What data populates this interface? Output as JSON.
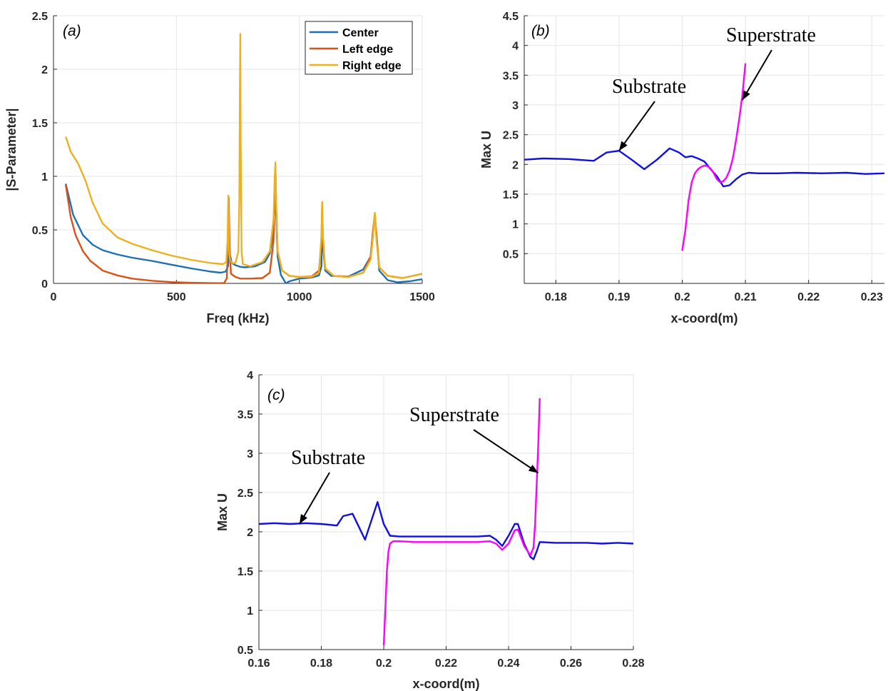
{
  "chart_data": [
    {
      "panel": "(a)",
      "type": "line",
      "xlabel": "Freq (kHz)",
      "ylabel": "|S-Parameter|",
      "xlim": [
        0,
        1500
      ],
      "ylim": [
        0,
        2.5
      ],
      "xticks": [
        0,
        500,
        1000,
        1500
      ],
      "yticks": [
        0,
        0.5,
        1,
        1.5,
        2,
        2.5
      ],
      "grid": true,
      "legend_position": "top-right",
      "series": [
        {
          "name": "Center",
          "color": "#1f6fb4",
          "x": [
            50,
            80,
            120,
            160,
            200,
            260,
            320,
            400,
            480,
            560,
            640,
            680,
            700,
            710,
            715,
            725,
            740,
            760,
            780,
            820,
            860,
            880,
            895,
            900,
            903,
            906,
            912,
            925,
            945,
            960,
            1000,
            1050,
            1080,
            1090,
            1093,
            1096,
            1105,
            1130,
            1200,
            1260,
            1290,
            1300,
            1307,
            1314,
            1325,
            1360,
            1400,
            1450,
            1500
          ],
          "y": [
            0.93,
            0.64,
            0.45,
            0.36,
            0.31,
            0.27,
            0.24,
            0.21,
            0.175,
            0.14,
            0.11,
            0.1,
            0.11,
            0.16,
            0.3,
            0.19,
            0.17,
            0.155,
            0.15,
            0.16,
            0.2,
            0.28,
            0.5,
            0.75,
            0.8,
            0.6,
            0.25,
            0.08,
            0.0,
            0.02,
            0.045,
            0.055,
            0.075,
            0.16,
            0.67,
            0.35,
            0.12,
            0.07,
            0.065,
            0.13,
            0.25,
            0.5,
            0.63,
            0.45,
            0.12,
            0.03,
            0.01,
            0.02,
            0.04
          ]
        },
        {
          "name": "Left edge",
          "color": "#d95319",
          "x": [
            50,
            70,
            90,
            120,
            150,
            200,
            260,
            320,
            400,
            480,
            560,
            640,
            680,
            695,
            705,
            710,
            713,
            716,
            722,
            740,
            760,
            800,
            850,
            880,
            895,
            900,
            903,
            906,
            912,
            930,
            960,
            1000,
            1050,
            1080,
            1090,
            1093,
            1096,
            1105,
            1140,
            1200,
            1260,
            1290,
            1300,
            1307,
            1314,
            1325,
            1360,
            1420,
            1500
          ],
          "y": [
            0.92,
            0.62,
            0.45,
            0.3,
            0.21,
            0.12,
            0.075,
            0.045,
            0.025,
            0.012,
            0.006,
            0.003,
            0.002,
            0.005,
            0.05,
            0.35,
            0.8,
            0.35,
            0.09,
            0.06,
            0.045,
            0.045,
            0.05,
            0.1,
            0.4,
            0.9,
            1.08,
            0.7,
            0.3,
            0.12,
            0.07,
            0.06,
            0.065,
            0.12,
            0.4,
            0.75,
            0.4,
            0.14,
            0.07,
            0.06,
            0.1,
            0.25,
            0.5,
            0.65,
            0.45,
            0.15,
            0.07,
            0.05,
            0.09
          ]
        },
        {
          "name": "Right edge",
          "color": "#edb120",
          "x": [
            50,
            70,
            100,
            130,
            160,
            200,
            260,
            320,
            400,
            480,
            560,
            640,
            690,
            703,
            708,
            711,
            714,
            718,
            726,
            740,
            752,
            756,
            758,
            760,
            762,
            765,
            770,
            800,
            850,
            880,
            895,
            900,
            903,
            906,
            912,
            930,
            960,
            1000,
            1050,
            1080,
            1090,
            1093,
            1096,
            1105,
            1140,
            1200,
            1260,
            1290,
            1300,
            1307,
            1314,
            1325,
            1360,
            1420,
            1500
          ],
          "y": [
            1.37,
            1.23,
            1.12,
            0.96,
            0.75,
            0.56,
            0.43,
            0.37,
            0.31,
            0.26,
            0.22,
            0.19,
            0.18,
            0.2,
            0.4,
            0.82,
            0.3,
            0.22,
            0.19,
            0.19,
            0.3,
            0.8,
            1.8,
            2.33,
            1.2,
            0.3,
            0.18,
            0.16,
            0.2,
            0.3,
            0.6,
            1.0,
            1.13,
            0.7,
            0.3,
            0.12,
            0.07,
            0.06,
            0.06,
            0.1,
            0.45,
            0.76,
            0.45,
            0.14,
            0.07,
            0.06,
            0.1,
            0.22,
            0.45,
            0.66,
            0.4,
            0.15,
            0.07,
            0.05,
            0.09
          ]
        }
      ]
    },
    {
      "panel": "(b)",
      "type": "line",
      "xlabel": "x-coord(m)",
      "ylabel": "Max U",
      "xlim": [
        0.175,
        0.232
      ],
      "ylim": [
        0,
        4.5
      ],
      "xticks": [
        0.18,
        0.19,
        0.2,
        0.21,
        0.22,
        0.23
      ],
      "yticks": [
        0.5,
        1,
        1.5,
        2,
        2.5,
        3,
        3.5,
        4,
        4.5
      ],
      "grid": true,
      "annotations": [
        {
          "text": "Substrate",
          "target": [
            0.19,
            2.23
          ]
        },
        {
          "text": "Superstrate",
          "target": [
            0.2095,
            3.08
          ]
        }
      ],
      "series": [
        {
          "color": "#1010e0",
          "x": [
            0.175,
            0.178,
            0.182,
            0.186,
            0.188,
            0.19,
            0.192,
            0.194,
            0.196,
            0.198,
            0.1995,
            0.2005,
            0.2015,
            0.2025,
            0.2035,
            0.2045,
            0.2055,
            0.2065,
            0.2075,
            0.2085,
            0.2095,
            0.2105,
            0.212,
            0.215,
            0.218,
            0.222,
            0.226,
            0.229,
            0.232
          ],
          "y": [
            2.08,
            2.1,
            2.09,
            2.06,
            2.2,
            2.23,
            2.08,
            1.92,
            2.08,
            2.27,
            2.2,
            2.12,
            2.14,
            2.1,
            2.05,
            1.92,
            1.8,
            1.63,
            1.65,
            1.75,
            1.83,
            1.86,
            1.85,
            1.85,
            1.86,
            1.85,
            1.86,
            1.84,
            1.85
          ]
        },
        {
          "color": "#ff00ff",
          "x": [
            0.2,
            0.2005,
            0.201,
            0.2015,
            0.202,
            0.2025,
            0.203,
            0.2035,
            0.204,
            0.2045,
            0.205,
            0.2055,
            0.206,
            0.2065,
            0.207,
            0.2075,
            0.208,
            0.2085,
            0.209,
            0.2095,
            0.21
          ],
          "y": [
            0.55,
            0.9,
            1.4,
            1.7,
            1.85,
            1.92,
            1.96,
            1.98,
            1.97,
            1.93,
            1.85,
            1.75,
            1.7,
            1.72,
            1.78,
            1.9,
            2.1,
            2.4,
            2.75,
            3.15,
            3.7
          ]
        }
      ]
    },
    {
      "panel": "(c)",
      "type": "line",
      "xlabel": "x-coord(m)",
      "ylabel": "Max U",
      "xlim": [
        0.16,
        0.28
      ],
      "ylim": [
        0.5,
        4
      ],
      "xticks": [
        0.16,
        0.18,
        0.2,
        0.22,
        0.24,
        0.26,
        0.28
      ],
      "yticks": [
        0.5,
        1,
        1.5,
        2,
        2.5,
        3,
        3.5,
        4
      ],
      "grid": true,
      "annotations": [
        {
          "text": "Substrate",
          "target": [
            0.173,
            2.1
          ]
        },
        {
          "text": "Superstrate",
          "target": [
            0.2495,
            2.75
          ]
        }
      ],
      "series": [
        {
          "color": "#1010e0",
          "x": [
            0.16,
            0.165,
            0.17,
            0.175,
            0.18,
            0.185,
            0.187,
            0.19,
            0.194,
            0.198,
            0.2,
            0.202,
            0.205,
            0.21,
            0.215,
            0.22,
            0.225,
            0.23,
            0.234,
            0.236,
            0.238,
            0.24,
            0.242,
            0.243,
            0.245,
            0.247,
            0.248,
            0.249,
            0.25,
            0.255,
            0.26,
            0.265,
            0.27,
            0.275,
            0.28
          ],
          "y": [
            2.1,
            2.11,
            2.1,
            2.11,
            2.1,
            2.08,
            2.2,
            2.23,
            1.9,
            2.38,
            2.1,
            1.95,
            1.94,
            1.94,
            1.94,
            1.94,
            1.94,
            1.94,
            1.95,
            1.9,
            1.82,
            1.95,
            2.1,
            2.1,
            1.85,
            1.68,
            1.65,
            1.75,
            1.87,
            1.86,
            1.86,
            1.86,
            1.85,
            1.86,
            1.85
          ]
        },
        {
          "color": "#ff00ff",
          "x": [
            0.2,
            0.2005,
            0.201,
            0.2015,
            0.202,
            0.203,
            0.205,
            0.21,
            0.215,
            0.22,
            0.225,
            0.23,
            0.234,
            0.236,
            0.238,
            0.24,
            0.242,
            0.243,
            0.245,
            0.247,
            0.248,
            0.2485,
            0.249,
            0.2495,
            0.25
          ],
          "y": [
            0.55,
            1.0,
            1.5,
            1.75,
            1.85,
            1.88,
            1.88,
            1.87,
            1.87,
            1.87,
            1.87,
            1.87,
            1.88,
            1.85,
            1.77,
            1.85,
            2.02,
            2.03,
            1.82,
            1.7,
            1.8,
            2.1,
            2.6,
            3.1,
            3.7
          ]
        }
      ]
    }
  ],
  "panel_a": {
    "tag": "(a)",
    "legend": [
      "Center",
      "Left edge",
      "Right edge"
    ]
  },
  "panel_b": {
    "tag": "(b)",
    "annotations": [
      "Substrate",
      "Superstrate"
    ]
  },
  "panel_c": {
    "tag": "(c)",
    "annotations": [
      "Substrate",
      "Superstrate"
    ]
  }
}
